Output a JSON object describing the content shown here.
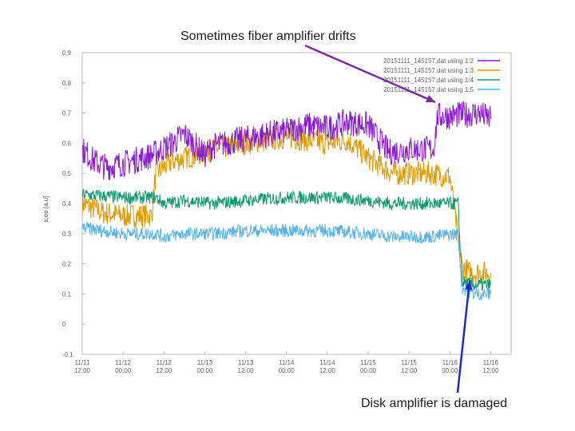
{
  "annotations": {
    "top": "Sometimes fiber amplifier drifts",
    "bottom": "Disk amplifier is damaged"
  },
  "colors": {
    "purple": "#8a19d6",
    "orange": "#e09a00",
    "green": "#0f9a6e",
    "blue": "#58b4e6",
    "arrow_top": "#7b2aa0",
    "arrow_bottom": "#1a2bd6"
  },
  "chart_data": {
    "type": "line",
    "title": "",
    "xlabel": "",
    "ylabel": "s;ee [a.u]",
    "ylim": [
      -0.1,
      0.9
    ],
    "yticks": [
      "0.9",
      "0.8",
      "0.7",
      "0.6",
      "0.5",
      "0.4",
      "0.3",
      "0.2",
      "0.1",
      "0",
      "-0.1"
    ],
    "ytick_values": [
      0.9,
      0.8,
      0.7,
      0.6,
      0.5,
      0.4,
      0.3,
      0.2,
      0.1,
      0,
      -0.1
    ],
    "xlim": [
      0,
      10.5
    ],
    "xticks": [
      {
        "x": 0,
        "l1": "11/11",
        "l2": "12:00"
      },
      {
        "x": 1,
        "l1": "11/12",
        "l2": "00:00"
      },
      {
        "x": 2,
        "l1": "11/12",
        "l2": "12:00"
      },
      {
        "x": 3,
        "l1": "11/13",
        "l2": "00:00"
      },
      {
        "x": 4,
        "l1": "11/13",
        "l2": "12:00"
      },
      {
        "x": 5,
        "l1": "11/14",
        "l2": "00:00"
      },
      {
        "x": 6,
        "l1": "11/14",
        "l2": "12:00"
      },
      {
        "x": 7,
        "l1": "11/15",
        "l2": "00:00"
      },
      {
        "x": 8,
        "l1": "11/15",
        "l2": "12:00"
      },
      {
        "x": 9,
        "l1": "11/16",
        "l2": "00:00"
      },
      {
        "x": 10,
        "l1": "11/16",
        "l2": "12:00"
      }
    ],
    "legend_position": "top-right",
    "series": [
      {
        "name": "20151111_145157.dat using 1:2",
        "color": "#8a19d6",
        "x": [
          0,
          0.3,
          0.6,
          1.2,
          1.7,
          2.2,
          2.5,
          3.0,
          3.2,
          3.5,
          4.5,
          5.0,
          5.5,
          6.0,
          6.5,
          7.0,
          7.5,
          8.0,
          8.6,
          8.7,
          9.0,
          9.7,
          10.0
        ],
        "y": [
          0.58,
          0.54,
          0.52,
          0.54,
          0.56,
          0.6,
          0.63,
          0.56,
          0.59,
          0.6,
          0.63,
          0.64,
          0.66,
          0.65,
          0.67,
          0.66,
          0.57,
          0.58,
          0.58,
          0.69,
          0.69,
          0.7,
          0.68
        ]
      },
      {
        "name": "20151111_145157.dat using 1:3",
        "color": "#e09a00",
        "x": [
          0,
          0.5,
          1.0,
          1.7,
          1.8,
          2.2,
          2.5,
          3.0,
          3.2,
          4.0,
          5.0,
          6.0,
          6.5,
          7.0,
          7.6,
          8.5,
          9.0,
          9.3,
          9.5,
          10.0
        ],
        "y": [
          0.4,
          0.37,
          0.36,
          0.36,
          0.5,
          0.54,
          0.55,
          0.57,
          0.58,
          0.6,
          0.62,
          0.6,
          0.61,
          0.55,
          0.5,
          0.5,
          0.49,
          0.19,
          0.17,
          0.17
        ]
      },
      {
        "name": "20151111_145157.dat using 1:4",
        "color": "#0f9a6e",
        "x": [
          0,
          1.0,
          1.8,
          2.0,
          2.5,
          3.2,
          4.0,
          5.0,
          6.0,
          7.0,
          7.6,
          8.5,
          9.2,
          9.3,
          9.6,
          10.0
        ],
        "y": [
          0.43,
          0.42,
          0.42,
          0.4,
          0.41,
          0.4,
          0.41,
          0.42,
          0.42,
          0.41,
          0.4,
          0.4,
          0.4,
          0.14,
          0.13,
          0.13
        ]
      },
      {
        "name": "20151111_145157.dat using 1:5",
        "color": "#58b4e6",
        "x": [
          0,
          1.0,
          1.8,
          2.0,
          2.5,
          3.2,
          4.0,
          5.0,
          6.0,
          7.0,
          7.6,
          8.5,
          9.2,
          9.3,
          9.6,
          10.0
        ],
        "y": [
          0.32,
          0.3,
          0.3,
          0.29,
          0.3,
          0.3,
          0.31,
          0.31,
          0.31,
          0.3,
          0.29,
          0.29,
          0.3,
          0.12,
          0.1,
          0.1
        ]
      }
    ]
  }
}
